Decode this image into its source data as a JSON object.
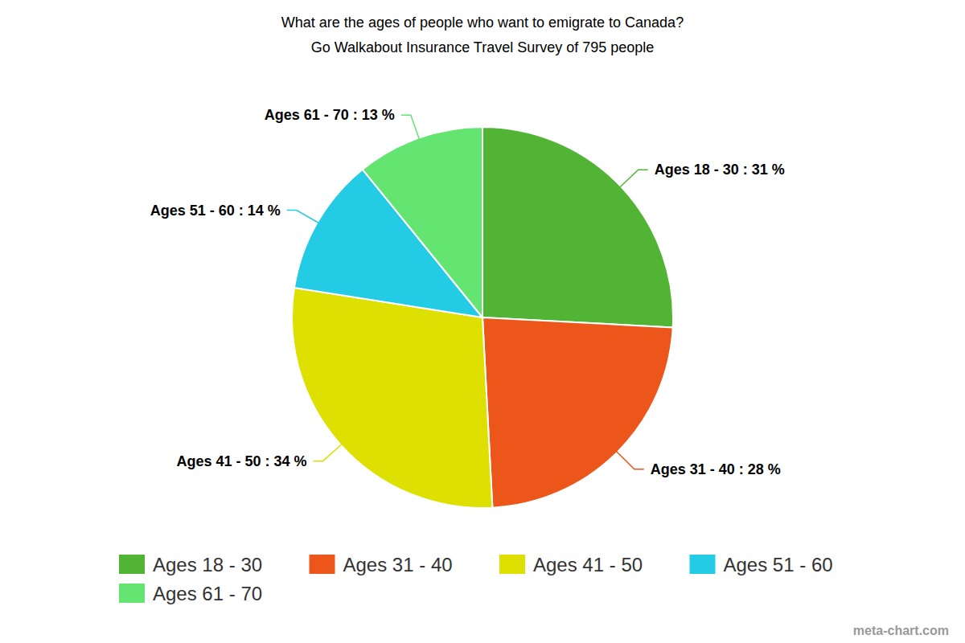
{
  "chart_data": {
    "type": "pie",
    "title": "What are the ages of people who want to emigrate to Canada?",
    "subtitle": "Go Walkabout Insurance Travel Survey of 795 people",
    "categories": [
      "Ages 18 - 30",
      "Ages 31 - 40",
      "Ages 41 - 50",
      "Ages 51 - 60",
      "Ages 61 - 70"
    ],
    "values": [
      31,
      28,
      34,
      14,
      13
    ],
    "value_labels": [
      "Ages 18 - 30 : 31 %",
      "Ages 31 - 40 : 28 %",
      "Ages 41 - 50 : 34 %",
      "Ages 51 - 60 : 14 %",
      "Ages 61 - 70 : 13 %"
    ],
    "colors": [
      "#52b435",
      "#ec561b",
      "#dde000",
      "#24cbe5",
      "#64e572"
    ],
    "data_labels": true,
    "legend": "bottom",
    "annotations": [
      "meta-chart.com"
    ]
  }
}
